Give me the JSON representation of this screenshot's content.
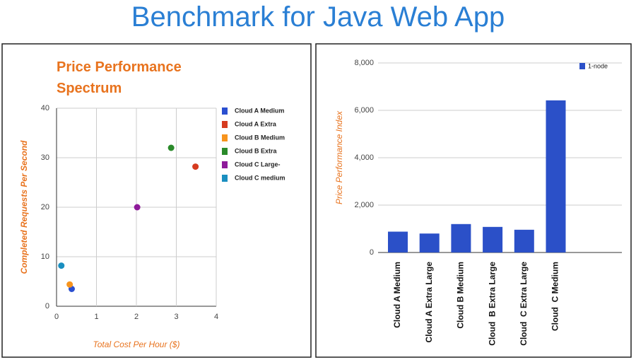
{
  "title": "Benchmark for Java Web App",
  "chart_data": [
    {
      "type": "scatter",
      "title": "Price Performance Spectrum",
      "x_label": "Total Cost Per Hour ($)",
      "y_label": "Completed Requests Per Second",
      "xlim": [
        0,
        4
      ],
      "xticks": [
        0,
        1,
        2,
        3,
        4
      ],
      "ylim": [
        0,
        40
      ],
      "yticks": [
        0,
        10,
        20,
        30,
        40
      ],
      "grid": true,
      "series": [
        {
          "name": "Cloud A Medium",
          "color": "#2a4fd0",
          "x": [
            0.38
          ],
          "values": [
            3.5
          ]
        },
        {
          "name": "Cloud A Extra",
          "color": "#d63b1f",
          "x": [
            3.48
          ],
          "values": [
            28.2
          ]
        },
        {
          "name": "Cloud B Medium",
          "color": "#f7941d",
          "x": [
            0.33
          ],
          "values": [
            4.4
          ]
        },
        {
          "name": "Cloud B Extra",
          "color": "#2a8a2a",
          "x": [
            2.87
          ],
          "values": [
            32
          ]
        },
        {
          "name": "Cloud C Large-",
          "color": "#8e1a9a",
          "x": [
            2.02
          ],
          "values": [
            20
          ]
        },
        {
          "name": "Cloud C medium",
          "color": "#1a8fc0",
          "x": [
            0.12
          ],
          "values": [
            8.2
          ]
        }
      ]
    },
    {
      "type": "bar",
      "y_label": "Price Performance Index",
      "categories": [
        "Cloud A Medium",
        "Cloud A Extra Large",
        "Cloud B Medium",
        "Cloud  B Extra Large",
        "Cloud  C Extra Large",
        "Cloud  C Medium"
      ],
      "ylim": [
        0,
        8000
      ],
      "yticks": [
        0,
        {
          "value": 2000,
          "label": "2,000"
        },
        {
          "value": 4000,
          "label": "4,000"
        },
        {
          "value": 6000,
          "label": "6,000"
        },
        {
          "value": 8000,
          "label": "8,000"
        }
      ],
      "grid": true,
      "series": [
        {
          "name": "1-node",
          "color": "#2b50c8",
          "values": [
            880,
            800,
            1200,
            1080,
            960,
            6420
          ]
        }
      ]
    }
  ]
}
